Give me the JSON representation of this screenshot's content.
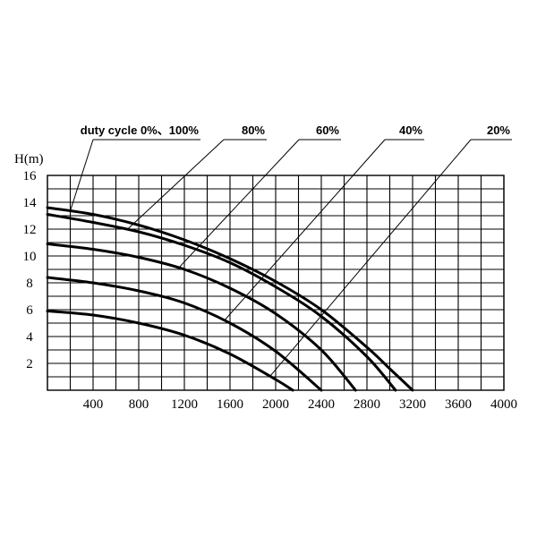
{
  "chart_data": {
    "type": "line",
    "title": "",
    "xlabel": "",
    "ylabel": "H(m)",
    "xlim": [
      0,
      4000
    ],
    "ylim": [
      0,
      16
    ],
    "x_ticks": [
      400,
      800,
      1200,
      1600,
      2000,
      2400,
      2800,
      3200,
      3600,
      4000
    ],
    "y_ticks": [
      2,
      4,
      6,
      8,
      10,
      12,
      14,
      16
    ],
    "grid": true,
    "series": [
      {
        "name": "duty cycle 0%、100%",
        "x": [
          0,
          400,
          800,
          1200,
          1600,
          2000,
          2400,
          2800,
          3000,
          3200
        ],
        "y": [
          13.6,
          13.1,
          12.3,
          11.2,
          9.8,
          8.1,
          6.0,
          3.2,
          1.6,
          0
        ]
      },
      {
        "name": "80%",
        "x": [
          0,
          400,
          800,
          1200,
          1600,
          2000,
          2400,
          2800,
          3050
        ],
        "y": [
          13.1,
          12.5,
          11.8,
          10.8,
          9.5,
          7.7,
          5.5,
          2.5,
          0
        ]
      },
      {
        "name": "60%",
        "x": [
          0,
          400,
          800,
          1200,
          1600,
          2000,
          2400,
          2700
        ],
        "y": [
          10.9,
          10.5,
          9.9,
          9.0,
          7.6,
          5.7,
          3.0,
          0
        ]
      },
      {
        "name": "40%",
        "x": [
          0,
          400,
          800,
          1200,
          1600,
          2000,
          2400
        ],
        "y": [
          8.4,
          8.0,
          7.4,
          6.5,
          5.0,
          2.9,
          0
        ]
      },
      {
        "name": "20%",
        "x": [
          0,
          400,
          800,
          1200,
          1600,
          2000,
          2150
        ],
        "y": [
          5.9,
          5.6,
          5.0,
          4.1,
          2.7,
          0.8,
          0
        ]
      }
    ],
    "annotations": [
      {
        "text": "duty cycle 0%、100%",
        "series": 0,
        "at_x": 200
      },
      {
        "text": "80%",
        "series": 1,
        "at_x": 700
      },
      {
        "text": "60%",
        "series": 2,
        "at_x": 1150
      },
      {
        "text": "40%",
        "series": 3,
        "at_x": 1550
      },
      {
        "text": "20%",
        "series": 4,
        "at_x": 1950
      }
    ]
  }
}
